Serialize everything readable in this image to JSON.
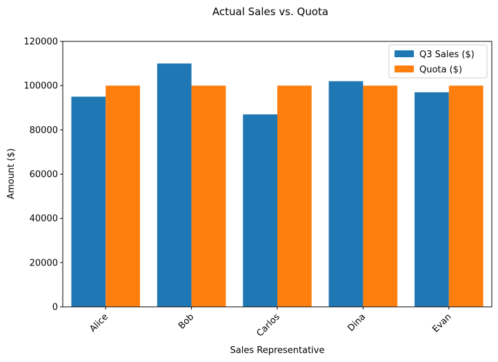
{
  "chart_data": {
    "type": "bar",
    "title": "Actual Sales vs. Quota",
    "xlabel": "Sales Representative",
    "ylabel": "Amount ($)",
    "categories": [
      "Alice",
      "Bob",
      "Carlos",
      "Dina",
      "Evan"
    ],
    "series": [
      {
        "name": "Q3 Sales ($)",
        "color": "#1f77b4",
        "values": [
          95000,
          110000,
          87000,
          102000,
          97000
        ]
      },
      {
        "name": "Quota ($)",
        "color": "#ff7f0e",
        "values": [
          100000,
          100000,
          100000,
          100000,
          100000
        ]
      }
    ],
    "ylim": [
      0,
      120000
    ],
    "yticks": [
      "0",
      "20000",
      "40000",
      "60000",
      "80000",
      "100000",
      "120000"
    ],
    "grid": false,
    "legend": "top-right"
  }
}
